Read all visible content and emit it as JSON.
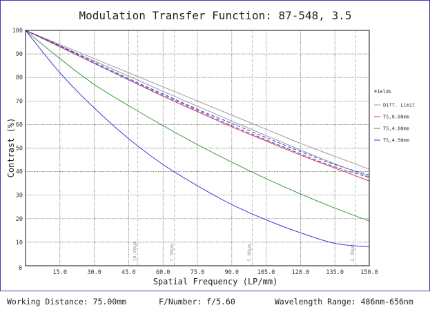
{
  "chart_data": {
    "type": "line",
    "title": "Modulation Transfer Function: 87-548, 3.5",
    "xlabel": "Spatial Frequency (LP/mm)",
    "ylabel": "Contrast (%)",
    "xlim": [
      0,
      150
    ],
    "ylim": [
      0,
      100
    ],
    "xticks": [
      "15.0",
      "30.0",
      "45.0",
      "60.0",
      "75.0",
      "90.0",
      "105.0",
      "120.0",
      "135.0",
      "150.0"
    ],
    "yticks": [
      "10",
      "20",
      "30",
      "40",
      "50",
      "60",
      "70",
      "80",
      "90",
      "100"
    ],
    "x_origin_label": "0",
    "grid": true,
    "legend_title": "Fields",
    "legend_position": "right",
    "x": [
      0,
      15,
      30,
      45,
      60,
      75,
      90,
      105,
      120,
      135,
      150
    ],
    "series": [
      {
        "name": "Diff. Limit",
        "color": "#9a9a9a",
        "dash": "solid",
        "values": [
          100,
          93.5,
          87,
          80.6,
          74.1,
          67.8,
          61.5,
          55.3,
          49.2,
          43.3,
          37.8
        ]
      },
      {
        "name": "",
        "color": "#9a9a9a",
        "dash": "solid",
        "values": [
          100,
          94,
          88,
          82,
          76,
          70,
          64,
          58,
          52,
          46.5,
          41
        ]
      },
      {
        "name": "TS,0.00mm",
        "color": "#d93a3a",
        "dash": "solid",
        "values": [
          100,
          93,
          86,
          79,
          72,
          65.5,
          59,
          53,
          47,
          41.5,
          36
        ]
      },
      {
        "name": "TS,4.00mm",
        "color": "#3a9a3a",
        "dash": "solid",
        "values": [
          100,
          88,
          77,
          68,
          59.5,
          51.5,
          44,
          37,
          30.5,
          24.5,
          19
        ]
      },
      {
        "name": "TS,4.50mm",
        "color": "#3a3ad9",
        "dash": "solid",
        "values": [
          100,
          82,
          67,
          54,
          43,
          34,
          26,
          19.5,
          14,
          9.5,
          8
        ]
      },
      {
        "name": "",
        "color": "#3a3ad9",
        "dash": "dashed",
        "values": [
          100,
          93.5,
          86.5,
          79.5,
          73,
          66.5,
          60.5,
          54.5,
          48.5,
          43,
          38.5
        ]
      },
      {
        "name": "",
        "color": "#3a3ad9",
        "dash": "dashed",
        "values": [
          100,
          93.3,
          86,
          79,
          72.5,
          66,
          59.5,
          53.5,
          47.5,
          42,
          37.5
        ]
      }
    ],
    "markers": [
      {
        "x": 49,
        "label": "10.00μm"
      },
      {
        "x": 65,
        "label": "7.50μm"
      },
      {
        "x": 99,
        "label": "5.00μm"
      },
      {
        "x": 144,
        "label": "3.49μm"
      }
    ]
  },
  "footer": {
    "working_distance": "Working Distance: 75.00mm",
    "f_number": "F/Number: f/5.60",
    "wavelength": "Wavelength Range: 486nm-656nm"
  }
}
